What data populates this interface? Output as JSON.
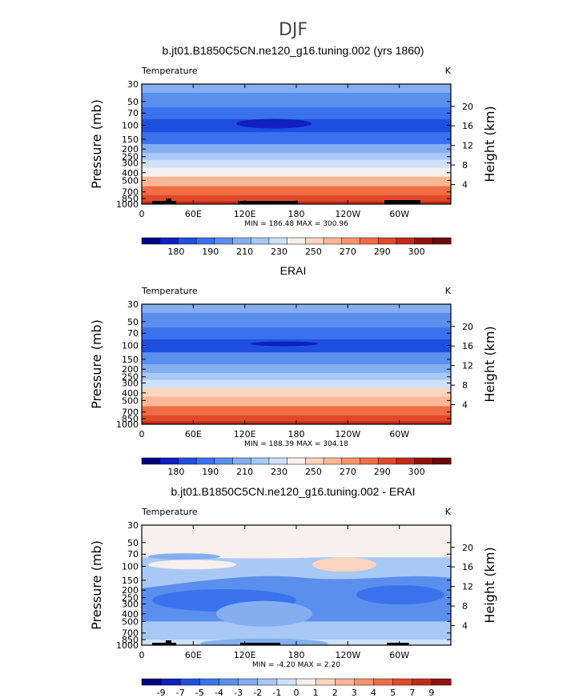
{
  "page": {
    "season": "DJF"
  },
  "chart_data": [
    {
      "type": "heatmap",
      "title": "b.jt01.B1850C5CN.ne120_g16.tuning.002 (yrs 1860)",
      "variable": "Temperature",
      "units": "K",
      "ylabel": "Pressure (mb)",
      "ylabel_right": "Height (km)",
      "pressure_ticks": [
        "30",
        "50",
        "70",
        "100",
        "150",
        "200",
        "250",
        "300",
        "400",
        "500",
        "700",
        "850",
        "1000"
      ],
      "height_ticks": [
        "20",
        "16",
        "12",
        "8",
        "4"
      ],
      "lon_ticks": [
        "0",
        "60E",
        "120E",
        "180",
        "120W",
        "60W"
      ],
      "stats": "MIN = 186.48  MAX = 300.96",
      "min": 186.48,
      "max": 300.96,
      "levels": [
        30,
        50,
        70,
        100,
        150,
        200,
        250,
        300,
        400,
        500,
        700,
        850,
        1000
      ],
      "level_values_K": [
        219,
        214,
        207,
        198,
        209,
        218,
        226,
        232,
        246,
        257,
        270,
        279,
        286
      ],
      "colorbar_labels": [
        "180",
        "190",
        "210",
        "230",
        "250",
        "270",
        "290",
        "300"
      ],
      "colorbar_colors": [
        "#00007f",
        "#0f1fc0",
        "#1f4fdf",
        "#3a72ee",
        "#5b8fee",
        "#85aef2",
        "#a8c8f6",
        "#cfe0fa",
        "#f7f0ed",
        "#fcd5bf",
        "#fcb896",
        "#f9946a",
        "#f06d45",
        "#e2492a",
        "#bf2b18",
        "#8f1410",
        "#6b0a0a"
      ]
    },
    {
      "type": "heatmap",
      "title": "ERAI",
      "variable": "Temperature",
      "units": "K",
      "ylabel": "Pressure (mb)",
      "ylabel_right": "Height (km)",
      "pressure_ticks": [
        "30",
        "50",
        "70",
        "100",
        "150",
        "200",
        "250",
        "300",
        "400",
        "500",
        "700",
        "850",
        "1000"
      ],
      "height_ticks": [
        "20",
        "16",
        "12",
        "8",
        "4"
      ],
      "lon_ticks": [
        "0",
        "60E",
        "120E",
        "180",
        "120W",
        "60W"
      ],
      "stats": "MIN = 188.39  MAX = 304.18",
      "min": 188.39,
      "max": 304.18,
      "levels": [
        30,
        50,
        70,
        100,
        150,
        200,
        250,
        300,
        400,
        500,
        700,
        850,
        1000
      ],
      "level_values_K": [
        220,
        215,
        208,
        199,
        210,
        219,
        227,
        233,
        247,
        258,
        271,
        281,
        289
      ],
      "colorbar_labels": [
        "180",
        "190",
        "210",
        "230",
        "250",
        "270",
        "290",
        "300"
      ],
      "colorbar_colors": [
        "#00007f",
        "#0f1fc0",
        "#1f4fdf",
        "#3a72ee",
        "#5b8fee",
        "#85aef2",
        "#a8c8f6",
        "#cfe0fa",
        "#f7f0ed",
        "#fcd5bf",
        "#fcb896",
        "#f9946a",
        "#f06d45",
        "#e2492a",
        "#bf2b18",
        "#8f1410",
        "#6b0a0a"
      ]
    },
    {
      "type": "heatmap",
      "title": "b.jt01.B1850C5CN.ne120_g16.tuning.002 - ERAI",
      "variable": "Temperature",
      "units": "K",
      "ylabel": "Pressure (mb)",
      "ylabel_right": "Height (km)",
      "pressure_ticks": [
        "30",
        "50",
        "70",
        "100",
        "150",
        "200",
        "250",
        "300",
        "400",
        "500",
        "700",
        "850",
        "1000"
      ],
      "height_ticks": [
        "20",
        "16",
        "12",
        "8",
        "4"
      ],
      "lon_ticks": [
        "0",
        "60E",
        "120E",
        "180",
        "120W",
        "60W"
      ],
      "stats": "MIN =  -4.20  MAX =   2.20",
      "min": -4.2,
      "max": 2.2,
      "colorbar_labels": [
        "-9",
        "-7",
        "-5",
        "-4",
        "-3",
        "-2",
        "-1",
        "0",
        "1",
        "2",
        "3",
        "4",
        "5",
        "7",
        "9"
      ],
      "colorbar_colors": [
        "#00007f",
        "#0f1fc0",
        "#1f4fdf",
        "#3a72ee",
        "#5b8fee",
        "#85aef2",
        "#a8c8f6",
        "#cfe0fa",
        "#f7f0ed",
        "#fcd5bf",
        "#fcb896",
        "#f9946a",
        "#f06d45",
        "#e2492a",
        "#bf2b18",
        "#8f1410"
      ]
    }
  ]
}
